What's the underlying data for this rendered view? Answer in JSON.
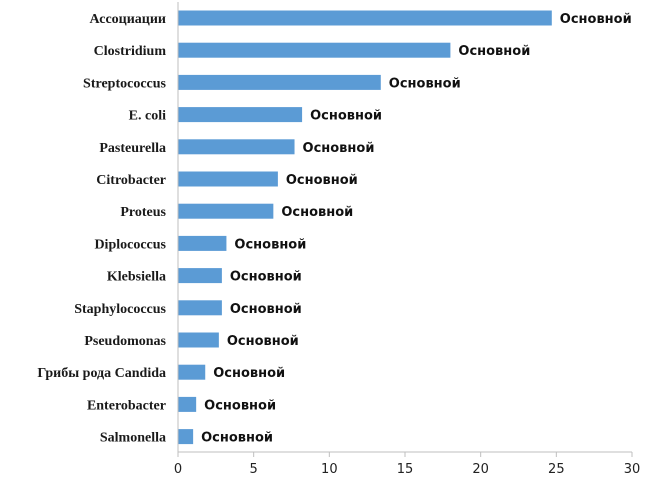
{
  "chart_data": {
    "type": "bar",
    "orientation": "horizontal",
    "categories": [
      "Ассоциации",
      "Clostridium",
      "Streptococcus",
      "E. coli",
      "Pasteurella",
      "Citrobacter",
      "Proteus",
      "Diplococcus",
      "Klebsiella",
      "Staphylococcus",
      "Pseudomonas",
      "Грибы рода  Candida",
      "Enterobacter",
      "Salmonella"
    ],
    "values": [
      24.7,
      18,
      13.4,
      8.2,
      7.7,
      6.6,
      6.3,
      3.2,
      2.9,
      2.9,
      2.7,
      1.8,
      1.2,
      1.0
    ],
    "data_labels": [
      "Основной",
      "Основной",
      "Основной",
      "Основной",
      "Основной",
      "Основной",
      "Основной",
      "Основной",
      "Основной",
      "Основной",
      "Основной",
      "Основной",
      "Основной",
      "Основной"
    ],
    "xlim": [
      0,
      30
    ],
    "xticks": [
      0,
      5,
      10,
      15,
      20,
      25,
      30
    ],
    "title": "",
    "xlabel": "",
    "ylabel": "",
    "grid": false,
    "legend": "none",
    "bar_color": "#5b9bd5"
  }
}
